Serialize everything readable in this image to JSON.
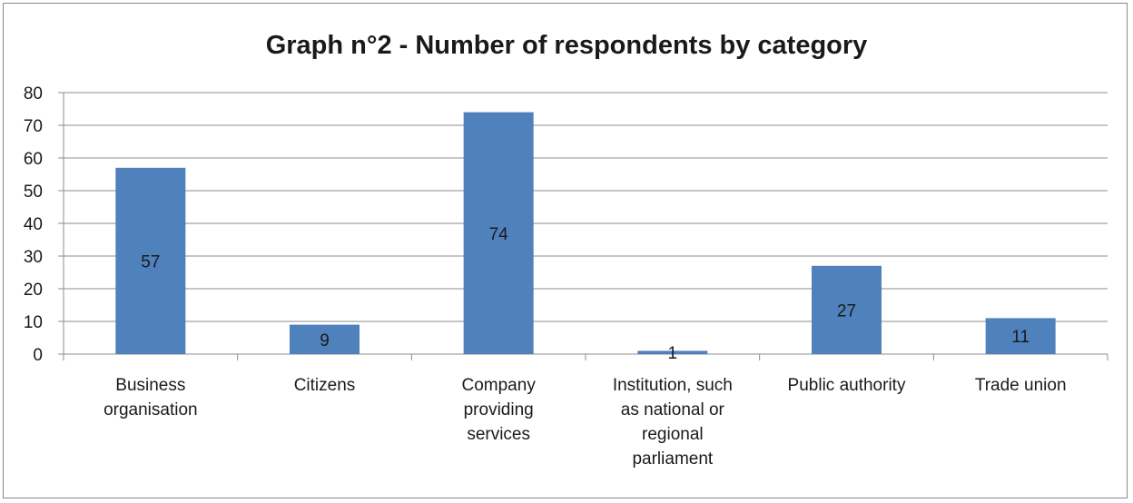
{
  "chart_data": {
    "type": "bar",
    "title": "Graph n°2 - Number of respondents by category",
    "categories": [
      "Business organisation",
      "Citizens",
      "Company providing services",
      "Institution, such as national or regional parliament",
      "Public authority",
      "Trade union"
    ],
    "category_lines": [
      [
        "Business",
        "organisation"
      ],
      [
        "Citizens"
      ],
      [
        "Company",
        "providing",
        "services"
      ],
      [
        "Institution, such",
        "as national or",
        "regional",
        "parliament"
      ],
      [
        "Public authority"
      ],
      [
        "Trade union"
      ]
    ],
    "values": [
      57,
      9,
      74,
      1,
      27,
      11
    ],
    "data_labels": [
      "57",
      "9",
      "74",
      "1",
      "27",
      "11"
    ],
    "ylim": [
      0,
      80
    ],
    "yticks": [
      0,
      10,
      20,
      30,
      40,
      50,
      60,
      70,
      80
    ],
    "xlabel": "",
    "ylabel": "",
    "grid": true,
    "legend": "none",
    "bar_color": "#4f81bd",
    "grid_color": "#8c8c8c"
  }
}
